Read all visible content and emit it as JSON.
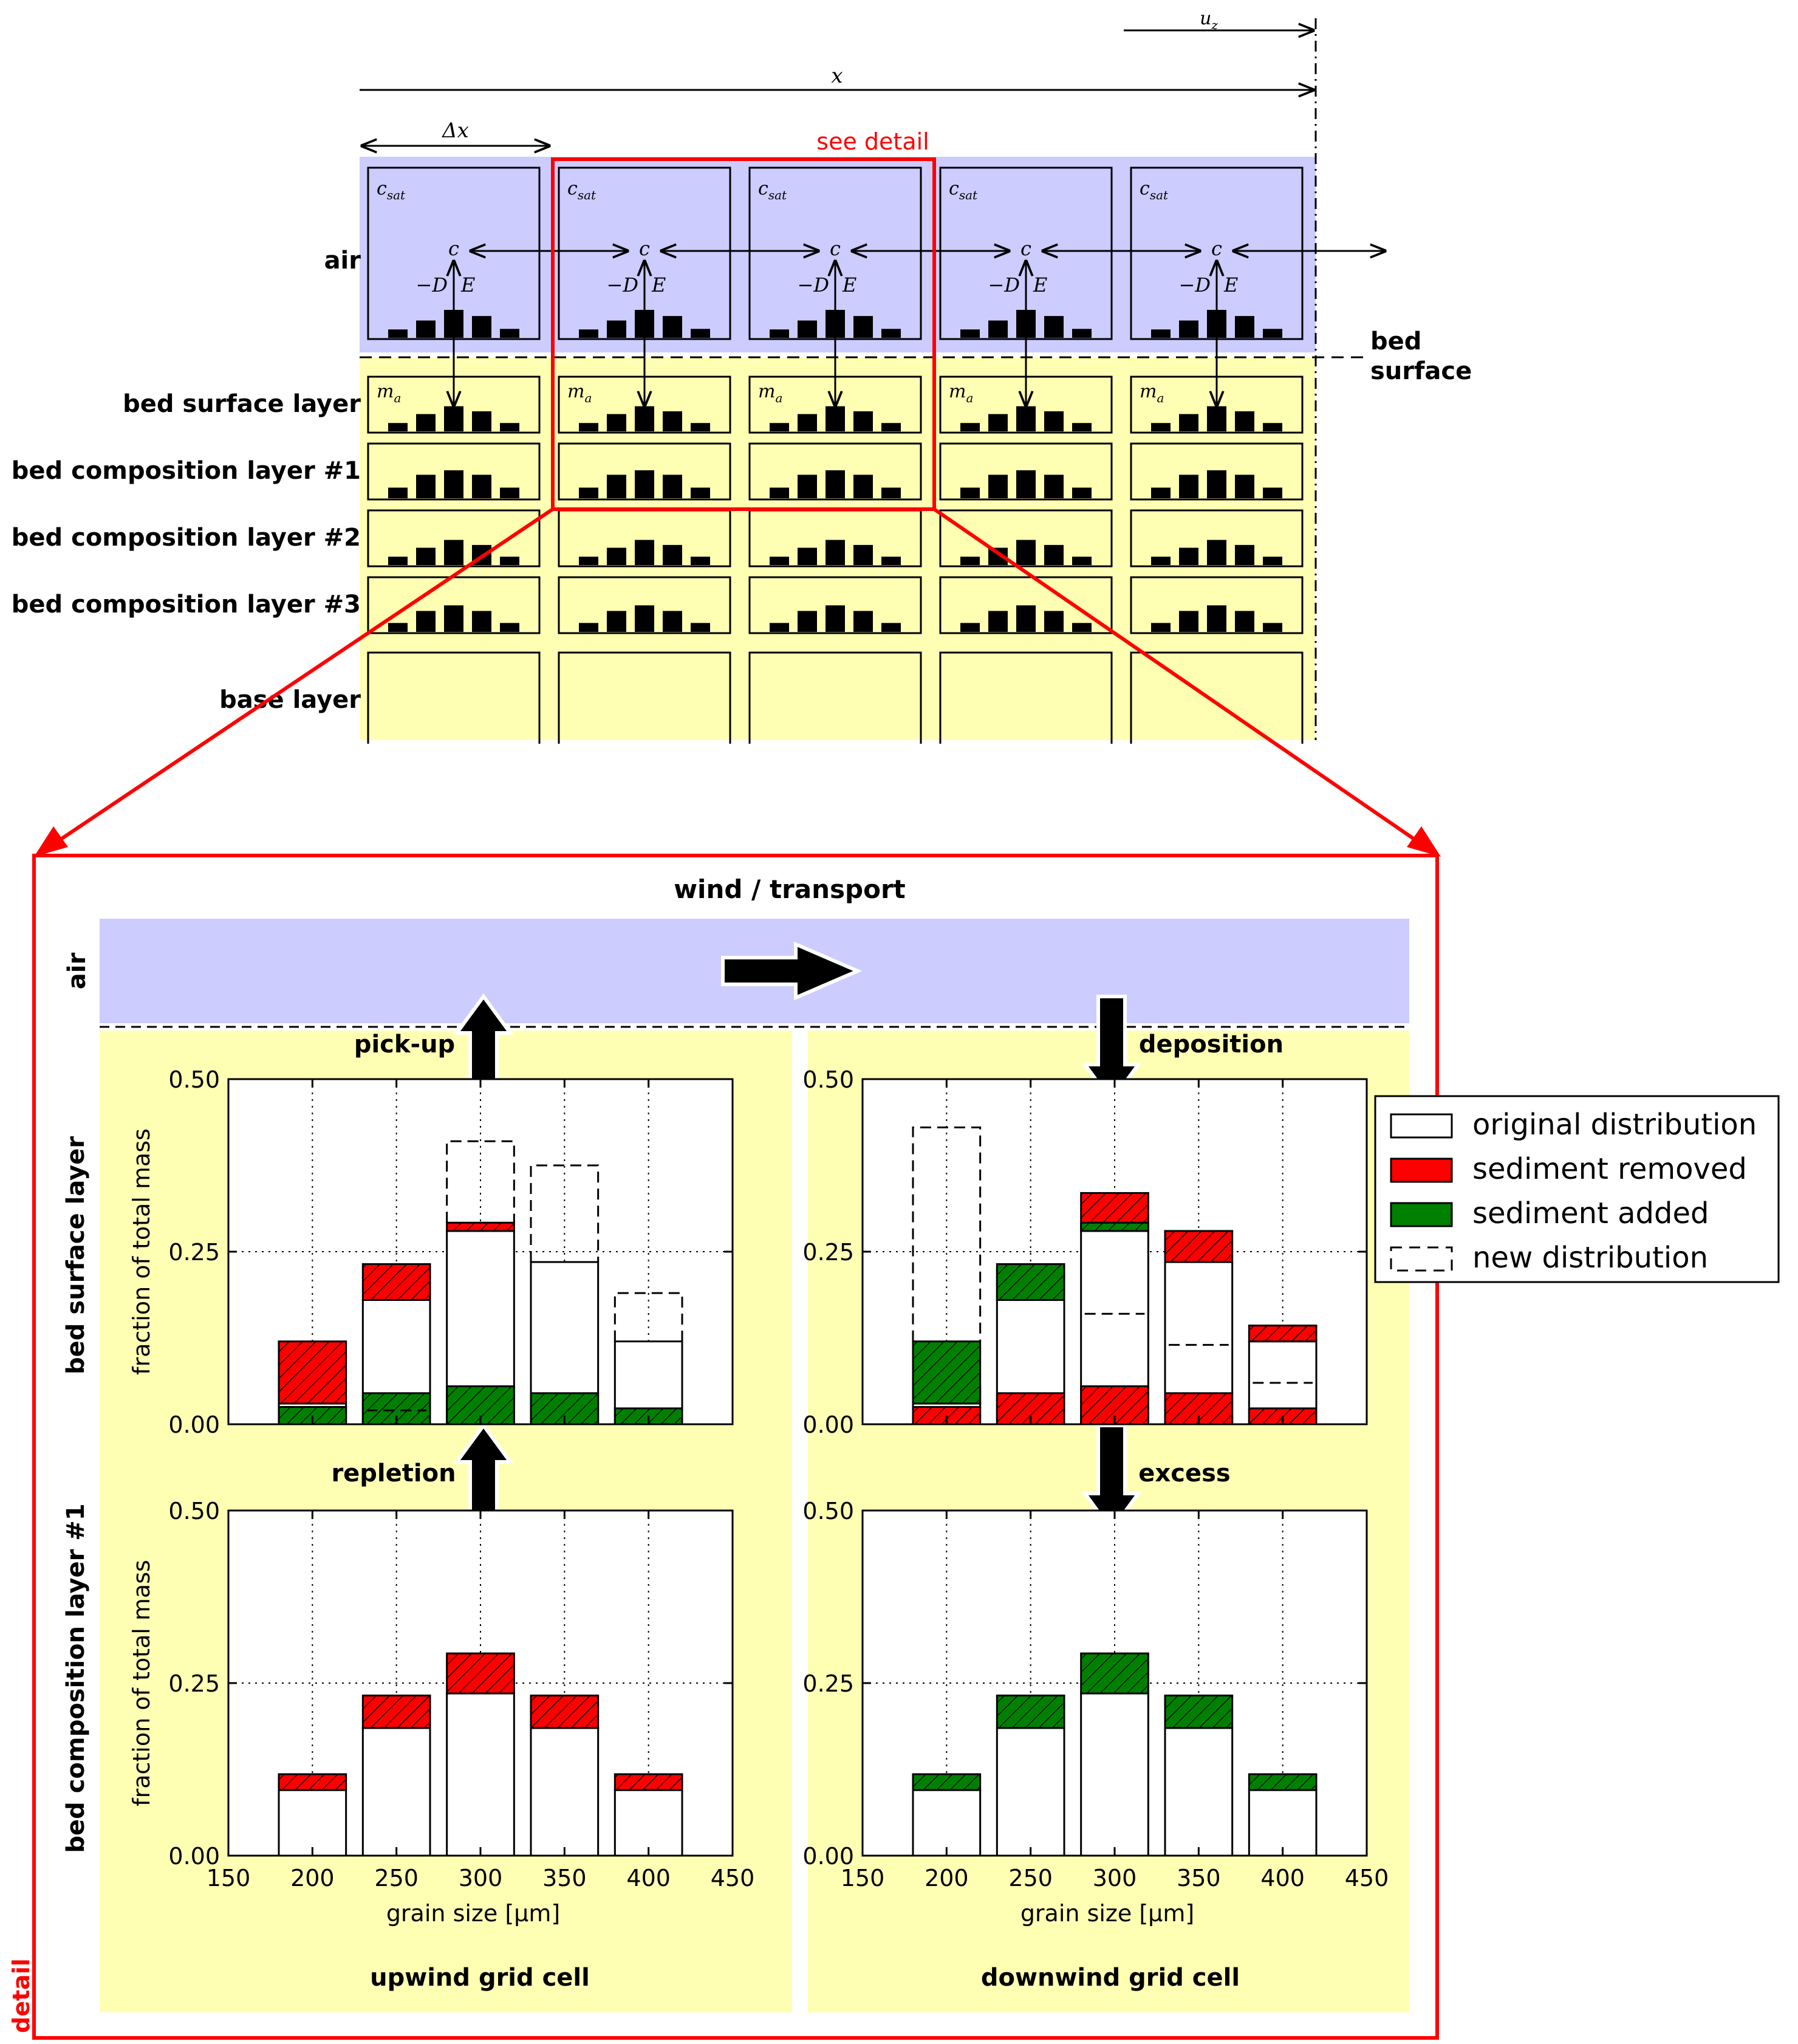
{
  "overview": {
    "uz_label": "u",
    "uz_sub": "z",
    "x_label": "x",
    "dx_label": "Δx",
    "see_detail": "see detail",
    "bed_surface_label": [
      "bed",
      "surface"
    ],
    "layer_labels": [
      "air",
      "bed surface layer",
      "bed composition layer #1",
      "bed composition layer #2",
      "bed composition layer #3",
      "base layer"
    ],
    "cell_text": {
      "csat": "c",
      "csat_sub": "sat",
      "c": "c",
      "flux": "−D",
      "E": "E",
      "ma": "m",
      "ma_sub": "a"
    }
  },
  "detail": {
    "frame_label": "detail",
    "title": "wind / transport",
    "air_label": "air",
    "row_labels": [
      "bed surface layer",
      "bed composition layer #1"
    ],
    "process_labels": {
      "pickup": "pick-up",
      "repletion": "repletion",
      "deposition": "deposition",
      "excess": "excess"
    },
    "column_labels": [
      "upwind grid cell",
      "downwind grid cell"
    ],
    "ylabel": "fraction of total mass",
    "xlabel": "grain size [μm]",
    "yticks": [
      "0.00",
      "0.25",
      "0.50"
    ],
    "xticks": [
      "150",
      "200",
      "250",
      "300",
      "350",
      "400",
      "450"
    ]
  },
  "legend": {
    "items": [
      {
        "label": "original distribution",
        "color": "#ffffff",
        "style": "solid"
      },
      {
        "label": "sediment removed",
        "color": "#ff0000",
        "style": "solid"
      },
      {
        "label": "sediment added",
        "color": "#008000",
        "style": "solid"
      },
      {
        "label": "new distribution",
        "color": "#ffffff",
        "style": "dashed"
      }
    ]
  },
  "colors": {
    "air": "#ccccff",
    "bed": "#ffffb3",
    "highlight": "#ff0000",
    "removed": "#ff0000",
    "added": "#008000"
  },
  "chart_data": [
    {
      "type": "bar",
      "panel": "upwind bed surface layer",
      "categories": [
        200,
        250,
        300,
        350,
        400
      ],
      "ylabel": "fraction of total mass",
      "xlabel": "",
      "xlim": [
        150,
        450
      ],
      "ylim": [
        0,
        0.5
      ],
      "grid": true,
      "original": [
        0.03,
        0.18,
        0.28,
        0.235,
        0.12
      ],
      "removed": [
        0.09,
        0.052,
        0.012,
        0,
        0
      ],
      "added": [
        0.025,
        0.045,
        0.055,
        0.045,
        0.023
      ],
      "new_distribution": [
        0.025,
        0.02,
        0.41,
        0.375,
        0.19
      ]
    },
    {
      "type": "bar",
      "panel": "downwind bed surface layer",
      "categories": [
        200,
        250,
        300,
        350,
        400
      ],
      "ylabel": "",
      "xlabel": "",
      "xlim": [
        150,
        450
      ],
      "ylim": [
        0,
        0.5
      ],
      "grid": true,
      "original": [
        0.03,
        0.18,
        0.28,
        0.235,
        0.12
      ],
      "removed": [
        0.025,
        0.045,
        0.055,
        0.045,
        0.023
      ],
      "added": [
        0.09,
        0.052,
        0.012,
        0,
        0
      ],
      "new_distribution": [
        0.43,
        0,
        0.16,
        0.115,
        0.06
      ]
    },
    {
      "type": "bar",
      "panel": "upwind bed composition layer #1",
      "categories": [
        200,
        250,
        300,
        350,
        400
      ],
      "ylabel": "fraction of total mass",
      "xlabel": "grain size [μm]",
      "xlim": [
        150,
        450
      ],
      "ylim": [
        0,
        0.5
      ],
      "grid": true,
      "original": [
        0.095,
        0.185,
        0.235,
        0.185,
        0.095
      ],
      "removed": [
        0.023,
        0.047,
        0.058,
        0.047,
        0.023
      ],
      "added": [
        0,
        0,
        0,
        0,
        0
      ],
      "new_distribution": [
        0,
        0,
        0,
        0,
        0
      ]
    },
    {
      "type": "bar",
      "panel": "downwind bed composition layer #1",
      "categories": [
        200,
        250,
        300,
        350,
        400
      ],
      "ylabel": "",
      "xlabel": "grain size [μm]",
      "xlim": [
        150,
        450
      ],
      "ylim": [
        0,
        0.5
      ],
      "grid": true,
      "original": [
        0.095,
        0.185,
        0.235,
        0.185,
        0.095
      ],
      "removed": [
        0,
        0,
        0,
        0,
        0
      ],
      "added": [
        0.023,
        0.047,
        0.058,
        0.047,
        0.023
      ],
      "new_distribution": [
        0,
        0,
        0,
        0,
        0
      ]
    }
  ]
}
